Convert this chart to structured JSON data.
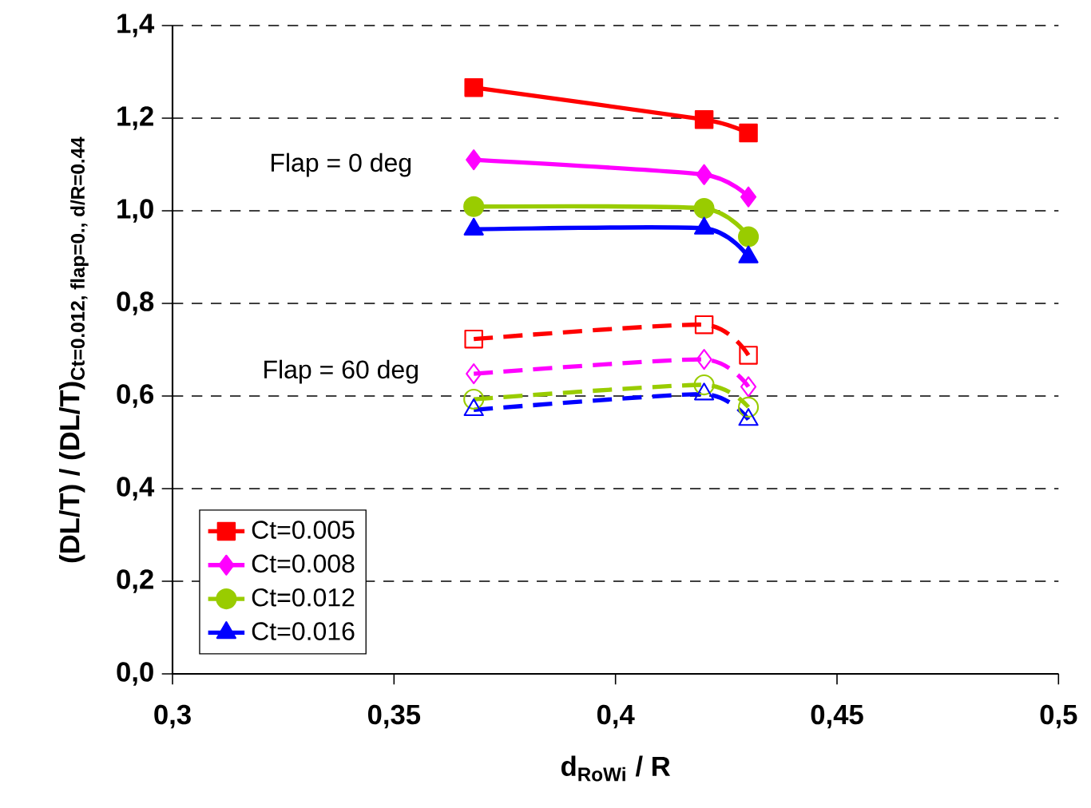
{
  "chart_data": {
    "type": "line",
    "xlabel": "d$_{RoWi}$ / R",
    "ylabel": "(DL/T) /  (DL/T)$_{Ct=0.012, flap=0., d/R=0.44}$",
    "x": [
      0.368,
      0.42,
      0.43
    ],
    "series": [
      {
        "name": "Ct=0.005",
        "color": "#ff0000",
        "marker": "square",
        "line_style": "solid",
        "values": [
          1.266,
          1.197,
          1.168
        ]
      },
      {
        "name": "Ct=0.008",
        "color": "#ff00ff",
        "marker": "diamond",
        "line_style": "solid",
        "values": [
          1.11,
          1.078,
          1.03
        ]
      },
      {
        "name": "Ct=0.012",
        "color": "#99cc00",
        "marker": "circle",
        "line_style": "solid",
        "values": [
          1.009,
          1.005,
          0.944
        ]
      },
      {
        "name": "Ct=0.016",
        "color": "#0000ff",
        "marker": "triangle",
        "line_style": "solid",
        "values": [
          0.96,
          0.962,
          0.9
        ]
      },
      {
        "color": "#ff0000",
        "marker": "square",
        "line_style": "dashed",
        "values": [
          0.723,
          0.754,
          0.688
        ]
      },
      {
        "color": "#ff00ff",
        "marker": "diamond",
        "line_style": "dashed",
        "values": [
          0.648,
          0.679,
          0.62
        ]
      },
      {
        "color": "#99cc00",
        "marker": "circle",
        "line_style": "dashed",
        "values": [
          0.593,
          0.624,
          0.576
        ]
      },
      {
        "color": "#0000ff",
        "marker": "triangle",
        "line_style": "dashed",
        "values": [
          0.57,
          0.604,
          0.549
        ]
      }
    ],
    "xlim": [
      0.3,
      0.5
    ],
    "xticks": [
      {
        "value": 0.3,
        "label": "0,3"
      },
      {
        "value": 0.35,
        "label": "0,35"
      },
      {
        "value": 0.4,
        "label": "0,4"
      },
      {
        "value": 0.45,
        "label": "0,45"
      },
      {
        "value": 0.5,
        "label": "0,5"
      }
    ],
    "ylim": [
      0,
      1.4
    ],
    "yticks": [
      {
        "value": 0,
        "label": "0,0"
      },
      {
        "value": 0.2,
        "label": "0,2"
      },
      {
        "value": 0.4,
        "label": "0,4"
      },
      {
        "value": 0.6,
        "label": "0,6"
      },
      {
        "value": 0.8,
        "label": "0,8"
      },
      {
        "value": 1.0,
        "label": "1,0"
      },
      {
        "value": 1.2,
        "label": "1,2"
      },
      {
        "value": 1.4,
        "label": "1,4"
      }
    ],
    "grid": "y",
    "legend": "bottom left",
    "annotations": [
      "Flap =  0 deg",
      "Flap = 60 deg"
    ]
  }
}
